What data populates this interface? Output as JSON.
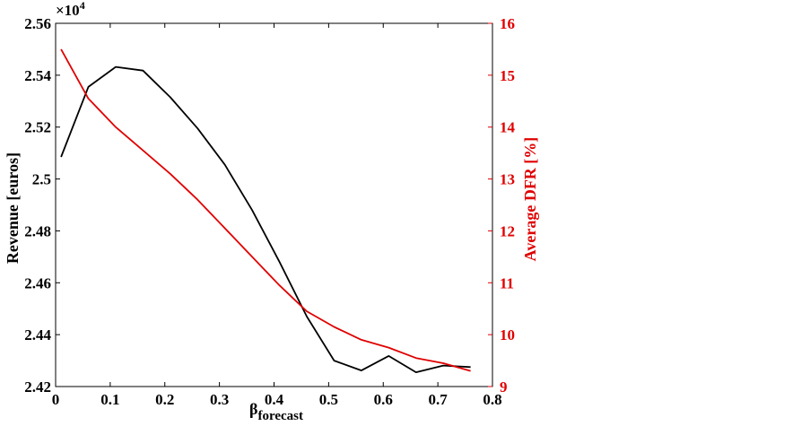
{
  "chart_data": {
    "type": "line",
    "title": "",
    "xlabel": "β",
    "xlabel_subscript": "forecast",
    "ylabel_left": "Revenue [euros]",
    "ylabel_right": "Average DFR [%]",
    "left_axis_multiplier": "×10",
    "left_axis_exponent": "4",
    "xlim": [
      0,
      0.8
    ],
    "ylim_left": [
      2.42,
      2.56
    ],
    "ylim_right": [
      9,
      16
    ],
    "x_ticks": [
      "0",
      "0.1",
      "0.2",
      "0.3",
      "0.4",
      "0.5",
      "0.6",
      "0.7",
      "0.8"
    ],
    "y_ticks_left": [
      "2.42",
      "2.44",
      "2.46",
      "2.48",
      "2.5",
      "2.52",
      "2.54",
      "2.56"
    ],
    "y_ticks_right": [
      "9",
      "10",
      "11",
      "12",
      "13",
      "14",
      "15",
      "16"
    ],
    "grid": false,
    "colors": {
      "revenue": "#000000",
      "dfr": "#e00000"
    },
    "x": [
      0.01,
      0.06,
      0.11,
      0.16,
      0.21,
      0.26,
      0.31,
      0.36,
      0.41,
      0.46,
      0.51,
      0.56,
      0.61,
      0.66,
      0.71,
      0.76
    ],
    "series": [
      {
        "axis": "left",
        "values": [
          2.5085,
          2.5355,
          2.5432,
          2.5418,
          2.5315,
          2.5195,
          2.5055,
          2.488,
          2.468,
          2.447,
          2.43,
          2.4262,
          2.4318,
          2.4255,
          2.4281,
          2.4275
        ]
      },
      {
        "axis": "right",
        "values": [
          15.5,
          14.55,
          14.0,
          13.55,
          13.1,
          12.6,
          12.05,
          11.5,
          10.95,
          10.45,
          10.15,
          9.9,
          9.75,
          9.55,
          9.45,
          9.3
        ]
      }
    ]
  }
}
